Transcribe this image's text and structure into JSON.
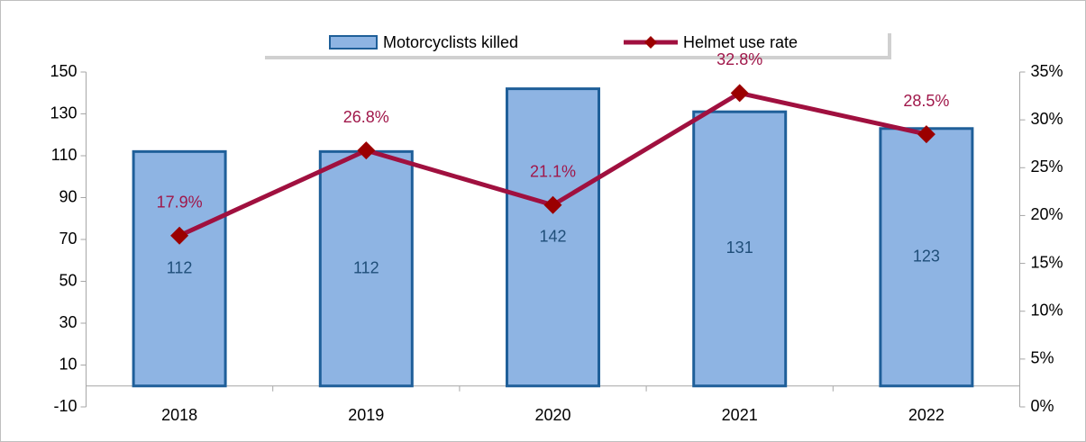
{
  "chart_data": {
    "type": "bar_line",
    "categories": [
      "2018",
      "2019",
      "2020",
      "2021",
      "2022"
    ],
    "series": [
      {
        "name": "Motorcyclists killed",
        "type": "bar",
        "color": "#8eb4e3",
        "values": [
          112,
          112,
          142,
          131,
          123
        ]
      },
      {
        "name": "Helmet use rate",
        "type": "line",
        "color": "#a0103f",
        "axis": "y2",
        "values": [
          17.9,
          26.8,
          21.1,
          32.8,
          28.5
        ],
        "value_labels": [
          "17.9%",
          "26.8%",
          "21.1%",
          "32.8%",
          "28.5%"
        ]
      }
    ],
    "ylim": [
      -10,
      150
    ],
    "yticks": [
      -10,
      10,
      30,
      50,
      70,
      90,
      110,
      130,
      150
    ],
    "y2lim": [
      0,
      35
    ],
    "y2ticks": [
      {
        "value": 0,
        "label": "0%"
      },
      {
        "value": 5,
        "label": "5%"
      },
      {
        "value": 10,
        "label": "10%"
      },
      {
        "value": 15,
        "label": "15%"
      },
      {
        "value": 20,
        "label": "20%"
      },
      {
        "value": 25,
        "label": "25%"
      },
      {
        "value": 30,
        "label": "30%"
      },
      {
        "value": 35,
        "label": "35%"
      }
    ],
    "legend": "top"
  }
}
